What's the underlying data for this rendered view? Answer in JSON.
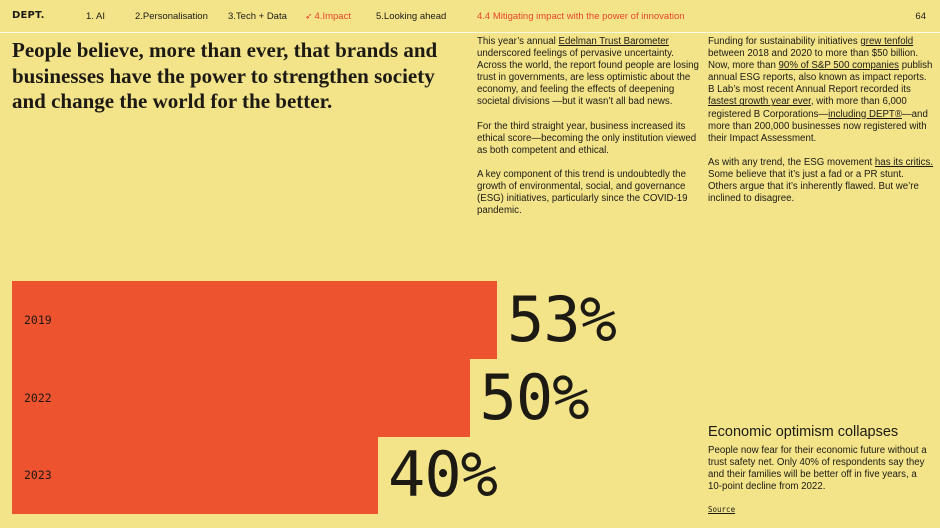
{
  "header": {
    "logo": "DEPT.",
    "nav": [
      {
        "label": "1. AI",
        "active": false
      },
      {
        "label": "2.Personalisation",
        "active": false
      },
      {
        "label": "3.Tech + Data",
        "active": false
      },
      {
        "label": "4.Impact",
        "active": true,
        "icon": "arrow-icon"
      },
      {
        "label": "5.Looking ahead",
        "active": false
      }
    ],
    "section_title": "4.4 Mitigating impact with the power of innovation",
    "page_number": "64"
  },
  "headline": "People believe, more than ever, that brands and businesses have the power to strengthen society and change the world for the better.",
  "column1": {
    "p1": {
      "pre": "This year’s annual ",
      "link": "Edelman Trust Barometer",
      "post": " underscored feelings of pervasive uncertainty. Across the world, the report found people are losing trust in governments, are less optimistic about the economy, and feeling the effects of deepening societal divisions —but it wasn’t all bad news."
    },
    "p2": "For the third straight year, business increased its ethical score—becoming the only institution viewed as both competent and ethical.",
    "p3": "A key component of this trend is undoubtedly the growth of environmental, social, and governance (ESG) initiatives, particularly since the COVID-19 pandemic."
  },
  "column2": {
    "p1": {
      "a": "Funding for sustainability initiatives ",
      "link1": "grew tenfold",
      "b": " between 2018 and 2020 to more than $50 billion. Now, more than ",
      "link2": "90% of S&P 500 companies",
      "c": " publish annual ESG reports, also known as impact reports. B Lab’s most recent Annual Report recorded its ",
      "link3": "fastest growth year ever",
      "d": ", with more than 6,000 registered B Corporations—",
      "link4": "including DEPT®",
      "e": "—and more than 200,000 businesses now registered with their Impact Assessment."
    },
    "p2": {
      "a": "As with any trend, the ESG movement ",
      "link": "has its critics.",
      "b": " Some believe that it’s just a fad or a PR stunt. Others argue that it’s inherently flawed. But we’re inclined to disagree."
    }
  },
  "chart_data": {
    "type": "bar",
    "orientation": "horizontal",
    "categories": [
      "2019",
      "2022",
      "2023"
    ],
    "values": [
      53,
      50,
      40
    ],
    "value_labels": [
      "53%",
      "50%",
      "40%"
    ],
    "color": "#ee5330"
  },
  "callout": {
    "title": "Economic optimism collapses",
    "text": "People now fear for their economic future without a trust safety net. Only 40% of respondents say they and their families will be better off in five years, a 10-point decline from 2022.",
    "source_label": "Source"
  }
}
